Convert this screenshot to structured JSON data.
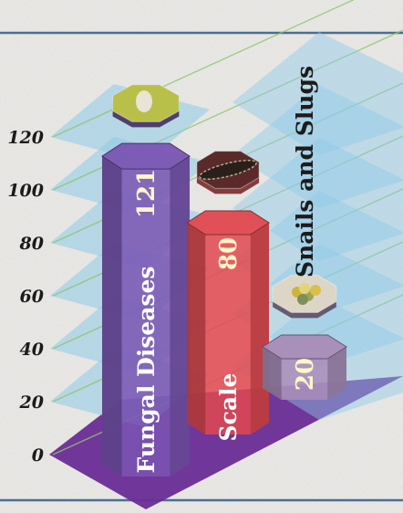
{
  "chart_data": {
    "type": "bar",
    "categories": [
      "Fungal Diseases",
      "Scale",
      "Snails and Slugs"
    ],
    "values": [
      121,
      80,
      20
    ],
    "ylim": [
      0,
      120
    ],
    "yticks": [
      "0",
      "20",
      "40",
      "60",
      "80",
      "100",
      "120"
    ],
    "colors": [
      "#7a55b3",
      "#e0484f",
      "#a88cb8"
    ],
    "grid": true,
    "legend": "none",
    "title": "",
    "xlabel": "",
    "ylabel": ""
  }
}
